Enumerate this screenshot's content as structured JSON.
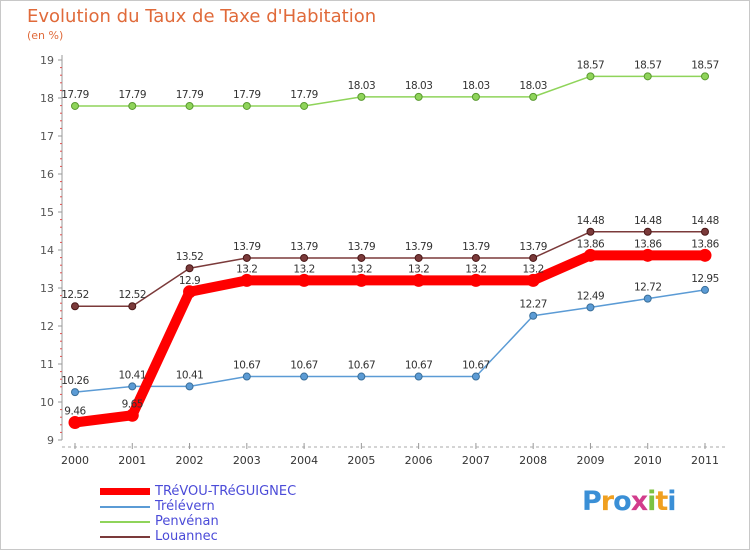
{
  "title": "Evolution du Taux de Taxe d'Habitation",
  "subtitle": "(en %)",
  "brand": "Proxiti",
  "chart_data": {
    "type": "line",
    "title": "Evolution du Taux de Taxe d'Habitation",
    "ylabel": "(en %)",
    "xlabel": "",
    "x": [
      "2000",
      "2001",
      "2002",
      "2003",
      "2004",
      "2005",
      "2006",
      "2007",
      "2008",
      "2009",
      "2010",
      "2011"
    ],
    "yticks": [
      9,
      10,
      11,
      12,
      13,
      14,
      15,
      16,
      17,
      18,
      19
    ],
    "ylim": [
      9,
      19
    ],
    "grid": "x-axis dashed only",
    "legend_position": "bottom-left",
    "series": [
      {
        "name": "TRéVOU-TRéGUIGNEC",
        "color": "#ff0000",
        "values": [
          9.46,
          9.65,
          12.9,
          13.2,
          13.2,
          13.2,
          13.2,
          13.2,
          13.2,
          13.86,
          13.86,
          13.86
        ],
        "labels": [
          "9.46",
          "9.65",
          "12.9",
          "13.2",
          "13.2",
          "13.2",
          "13.2",
          "13.2",
          "13.2",
          "13.86",
          "13.86",
          "13.86"
        ]
      },
      {
        "name": "Trélévern",
        "color": "#5b9bd5",
        "values": [
          10.26,
          10.41,
          10.41,
          10.67,
          10.67,
          10.67,
          10.67,
          10.67,
          12.27,
          12.49,
          12.72,
          12.95
        ],
        "labels": [
          "10.26",
          "10.41",
          "10.41",
          "10.67",
          "10.67",
          "10.67",
          "10.67",
          "10.67",
          "12.27",
          "12.49",
          "12.72",
          "12.95"
        ]
      },
      {
        "name": "Penvénan",
        "color": "#8fd45a",
        "values": [
          17.79,
          17.79,
          17.79,
          17.79,
          17.79,
          18.03,
          18.03,
          18.03,
          18.03,
          18.57,
          18.57,
          18.57
        ],
        "labels": [
          "17.79",
          "17.79",
          "17.79",
          "17.79",
          "17.79",
          "18.03",
          "18.03",
          "18.03",
          "18.03",
          "18.57",
          "18.57",
          "18.57"
        ]
      },
      {
        "name": "Louannec",
        "color": "#7b3a3a",
        "values": [
          12.52,
          12.52,
          13.52,
          13.79,
          13.79,
          13.79,
          13.79,
          13.79,
          13.79,
          14.48,
          14.48,
          14.48
        ],
        "labels": [
          "12.52",
          "12.52",
          "13.52",
          "13.79",
          "13.79",
          "13.79",
          "13.79",
          "13.79",
          "13.79",
          "14.48",
          "14.48",
          "14.48"
        ]
      }
    ]
  }
}
